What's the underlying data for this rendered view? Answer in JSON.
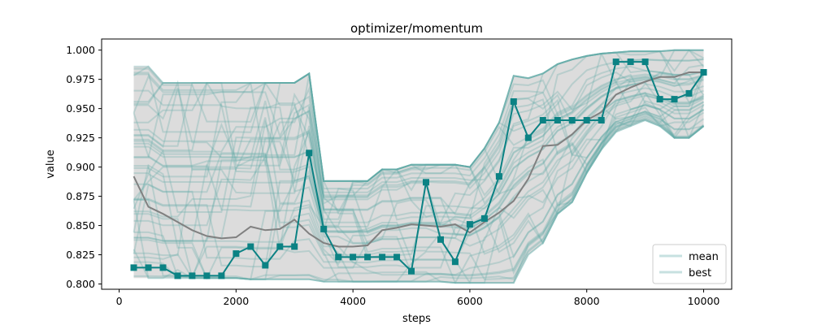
{
  "chart_data": {
    "type": "line",
    "title": "optimizer/momentum",
    "xlabel": "steps",
    "ylabel": "value",
    "xlim": [
      -300,
      10480
    ],
    "ylim": [
      0.7955,
      1.0095
    ],
    "x_ticks": [
      0,
      2000,
      4000,
      6000,
      8000,
      10000
    ],
    "x_tick_labels": [
      "0",
      "2000",
      "4000",
      "6000",
      "8000",
      "10000"
    ],
    "y_ticks": [
      0.8,
      0.825,
      0.85,
      0.875,
      0.9,
      0.925,
      0.95,
      0.975,
      1.0
    ],
    "y_tick_labels": [
      "0.800",
      "0.825",
      "0.850",
      "0.875",
      "0.900",
      "0.925",
      "0.950",
      "0.975",
      "1.000"
    ],
    "grid": false,
    "legend": {
      "placement": "bottom-right",
      "entries": [
        "mean",
        "best"
      ]
    },
    "colors": {
      "trial": "#5fa8a6",
      "band": "#dcdcdc",
      "mean": "#808080",
      "best": "#0b8284"
    },
    "x": [
      250,
      500,
      750,
      1000,
      1250,
      1500,
      1750,
      2000,
      2250,
      2500,
      2750,
      3000,
      3250,
      3500,
      3750,
      4000,
      4250,
      4500,
      4750,
      5000,
      5250,
      5500,
      5750,
      6000,
      6250,
      6500,
      6750,
      7000,
      7250,
      7500,
      7750,
      8000,
      8250,
      8500,
      8750,
      9000,
      9250,
      9500,
      9750,
      10000
    ],
    "band": {
      "upper": [
        0.986,
        0.986,
        0.972,
        0.972,
        0.972,
        0.972,
        0.972,
        0.972,
        0.972,
        0.972,
        0.972,
        0.972,
        0.98,
        0.888,
        0.888,
        0.888,
        0.888,
        0.898,
        0.898,
        0.902,
        0.902,
        0.902,
        0.902,
        0.9,
        0.916,
        0.938,
        0.978,
        0.976,
        0.98,
        0.988,
        0.992,
        0.995,
        0.997,
        0.998,
        0.999,
        0.999,
        0.999,
        1.0,
        1.0,
        1.0
      ],
      "lower": [
        0.805,
        0.805,
        0.805,
        0.805,
        0.805,
        0.805,
        0.805,
        0.805,
        0.804,
        0.804,
        0.804,
        0.804,
        0.804,
        0.802,
        0.802,
        0.802,
        0.802,
        0.802,
        0.802,
        0.802,
        0.802,
        0.802,
        0.801,
        0.801,
        0.801,
        0.801,
        0.801,
        0.825,
        0.835,
        0.86,
        0.87,
        0.895,
        0.915,
        0.93,
        0.935,
        0.94,
        0.935,
        0.925,
        0.925,
        0.935
      ]
    },
    "mean": [
      0.892,
      0.866,
      0.86,
      0.853,
      0.846,
      0.841,
      0.839,
      0.84,
      0.849,
      0.846,
      0.847,
      0.855,
      0.843,
      0.835,
      0.832,
      0.832,
      0.833,
      0.846,
      0.848,
      0.851,
      0.85,
      0.849,
      0.851,
      0.844,
      0.853,
      0.861,
      0.871,
      0.89,
      0.918,
      0.919,
      0.928,
      0.94,
      0.947,
      0.962,
      0.968,
      0.973,
      0.977,
      0.977,
      0.981,
      0.981
    ],
    "best": [
      0.814,
      0.814,
      0.814,
      0.807,
      0.807,
      0.807,
      0.807,
      0.826,
      0.832,
      0.816,
      0.832,
      0.832,
      0.912,
      0.847,
      0.823,
      0.823,
      0.823,
      0.823,
      0.823,
      0.811,
      0.887,
      0.838,
      0.819,
      0.851,
      0.856,
      0.892,
      0.956,
      0.925,
      0.94,
      0.94,
      0.94,
      0.94,
      0.94,
      0.99,
      0.99,
      0.99,
      0.958,
      0.958,
      0.963,
      0.981
    ]
  }
}
